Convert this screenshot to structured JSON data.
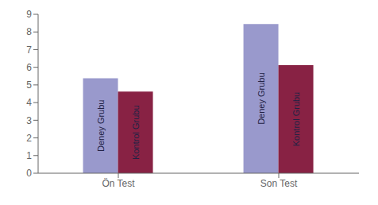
{
  "chart_data": {
    "type": "bar",
    "categories": [
      "Ön Test",
      "Son Test"
    ],
    "series": [
      {
        "name": "Deney Grubu",
        "color": "#9999CC",
        "values": [
          5.38,
          8.45
        ]
      },
      {
        "name": "Kontrol Grubu",
        "color": "#882244",
        "values": [
          4.62,
          6.12
        ]
      }
    ],
    "ylim": [
      0,
      9
    ],
    "yticks": [
      0,
      1,
      2,
      3,
      4,
      5,
      6,
      7,
      8,
      9
    ],
    "grid": false
  }
}
